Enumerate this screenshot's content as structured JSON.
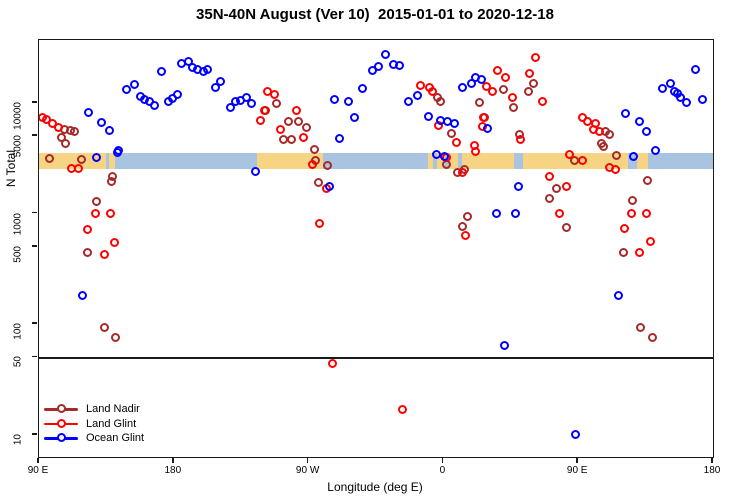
{
  "title": "35N-40N August (Ver 10)  2015-01-01 to 2020-12-18",
  "axes": {
    "ylabel": "N Total",
    "xlabel": "Longitude (deg E)",
    "xlim": [
      90,
      540
    ],
    "ylim": [
      6.3,
      37000
    ],
    "yticks": [
      10000,
      5000,
      1000,
      500,
      100,
      50,
      10
    ],
    "xticks": [
      {
        "lon": 90,
        "label": "90 E"
      },
      {
        "lon": 180,
        "label": "180"
      },
      {
        "lon": 270,
        "label": "90 W"
      },
      {
        "lon": 360,
        "label": "0"
      },
      {
        "lon": 450,
        "label": "90 E"
      },
      {
        "lon": 540,
        "label": "180"
      }
    ],
    "reference_line_value": 50
  },
  "legend": {
    "items": [
      {
        "label": "Land Nadir",
        "color": "#A52A2A"
      },
      {
        "label": "Land Glint",
        "color": "#FF0000"
      },
      {
        "label": "Ocean Glint",
        "color": "#0000FF"
      }
    ]
  },
  "colors": {
    "land_nadir": "#A52A2A",
    "land_glint": "#FF0000",
    "ocean_glint": "#0000FF",
    "map_land": "#F7D483",
    "map_ocean": "#A9C4E1",
    "axis": "#1a1a1a"
  },
  "map_strip": {
    "top_value": 3530,
    "bottom_value": 2530,
    "segments": [
      {
        "type": "land",
        "from": 90,
        "to": 134.7
      },
      {
        "type": "ocean",
        "from": 134.7,
        "to": 136.7
      },
      {
        "type": "land",
        "from": 136.7,
        "to": 140.7
      },
      {
        "type": "ocean",
        "from": 140.7,
        "to": 235.3
      },
      {
        "type": "land",
        "from": 235.3,
        "to": 279.3
      },
      {
        "type": "ocean",
        "from": 279.3,
        "to": 350
      },
      {
        "type": "land",
        "from": 350,
        "to": 353.3
      },
      {
        "type": "ocean",
        "from": 353.3,
        "to": 356
      },
      {
        "type": "land",
        "from": 356,
        "to": 361.3
      },
      {
        "type": "ocean",
        "from": 361.3,
        "to": 364
      },
      {
        "type": "land",
        "from": 364,
        "to": 370
      },
      {
        "type": "ocean",
        "from": 370,
        "to": 372.7
      },
      {
        "type": "land",
        "from": 372.7,
        "to": 407.3
      },
      {
        "type": "ocean",
        "from": 407.3,
        "to": 413.3
      },
      {
        "type": "land",
        "from": 413.3,
        "to": 483.3
      },
      {
        "type": "ocean",
        "from": 483.3,
        "to": 489.3
      },
      {
        "type": "land",
        "from": 489.3,
        "to": 496.7
      },
      {
        "type": "ocean",
        "from": 496.7,
        "to": 540
      }
    ]
  },
  "chart_data": {
    "type": "scatter",
    "x_units": "degrees east (wrapping 90E to 180)",
    "y_scale": "log10",
    "series": [
      {
        "name": "Land Nadir",
        "color": "#A52A2A",
        "points": [
          [
            107.3,
            5700
          ],
          [
            111.3,
            5590
          ],
          [
            114,
            5480
          ],
          [
            105.3,
            4830
          ],
          [
            108,
            4260
          ],
          [
            96.7,
            3120
          ],
          [
            118.7,
            3060
          ],
          [
            139.3,
            2160
          ],
          [
            138.7,
            1960
          ],
          [
            128.7,
            1280
          ],
          [
            122.7,
            440
          ],
          [
            133.7,
            93
          ],
          [
            141.3,
            76
          ],
          [
            248.7,
            9900
          ],
          [
            241.3,
            8500
          ],
          [
            256.7,
            6740
          ],
          [
            263.3,
            6740
          ],
          [
            268.7,
            5940
          ],
          [
            253.3,
            4620
          ],
          [
            258.7,
            4620
          ],
          [
            274,
            3770
          ],
          [
            274.7,
            2990
          ],
          [
            282.7,
            2700
          ],
          [
            276.7,
            1890
          ],
          [
            356,
            11100
          ],
          [
            358,
            10200
          ],
          [
            365.3,
            5240
          ],
          [
            362,
            2750
          ],
          [
            369.3,
            2330
          ],
          [
            374.3,
            2500
          ],
          [
            372.7,
            760
          ],
          [
            376,
            935
          ],
          [
            384,
            10000
          ],
          [
            387.3,
            7320
          ],
          [
            400,
            13100
          ],
          [
            406.7,
            8990
          ],
          [
            410.7,
            5140
          ],
          [
            416.7,
            12800
          ],
          [
            420,
            14850
          ],
          [
            430.7,
            1360
          ],
          [
            435.3,
            1670
          ],
          [
            442,
            740
          ],
          [
            447.3,
            3000
          ],
          [
            465.3,
            4290
          ],
          [
            468,
            5480
          ],
          [
            470.7,
            5140
          ],
          [
            466.7,
            4000
          ],
          [
            475.3,
            3330
          ],
          [
            496,
            1970
          ],
          [
            486,
            1300
          ],
          [
            480,
            440
          ],
          [
            491.3,
            93
          ],
          [
            499.3,
            76
          ]
        ]
      },
      {
        "name": "Land Glint",
        "color": "#FF0000",
        "points": [
          [
            92,
            7320
          ],
          [
            95.3,
            7030
          ],
          [
            99.3,
            6470
          ],
          [
            102.7,
            5940
          ],
          [
            112,
            2550
          ],
          [
            116.7,
            2550
          ],
          [
            128,
            1010
          ],
          [
            138,
            990
          ],
          [
            122.7,
            715
          ],
          [
            140.7,
            545
          ],
          [
            134,
            430
          ],
          [
            242.7,
            12600
          ],
          [
            247.3,
            11900
          ],
          [
            240.7,
            8600
          ],
          [
            262,
            8600
          ],
          [
            238,
            6900
          ],
          [
            251.3,
            5770
          ],
          [
            266.7,
            4830
          ],
          [
            272.7,
            2760
          ],
          [
            282,
            1670
          ],
          [
            277.3,
            820
          ],
          [
            285.7,
            44
          ],
          [
            332.7,
            17
          ],
          [
            344.7,
            14250
          ],
          [
            350.7,
            13700
          ],
          [
            352.7,
            12600
          ],
          [
            356.7,
            6200
          ],
          [
            362,
            3180
          ],
          [
            368.7,
            4350
          ],
          [
            380.7,
            4100
          ],
          [
            381.3,
            3620
          ],
          [
            372.7,
            2330
          ],
          [
            374.7,
            630
          ],
          [
            386.7,
            7450
          ],
          [
            386,
            6070
          ],
          [
            388.7,
            13950
          ],
          [
            392.7,
            12800
          ],
          [
            396,
            19500
          ],
          [
            401.3,
            16850
          ],
          [
            406,
            11100
          ],
          [
            417.3,
            18300
          ],
          [
            421.3,
            25500
          ],
          [
            426,
            10200
          ],
          [
            411.3,
            4620
          ],
          [
            430.7,
            2140
          ],
          [
            444,
            3380
          ],
          [
            452.7,
            3030
          ],
          [
            442,
            1740
          ],
          [
            437.3,
            1010
          ],
          [
            452.7,
            7320
          ],
          [
            456,
            6740
          ],
          [
            461.3,
            6470
          ],
          [
            460,
            5700
          ],
          [
            464,
            5480
          ],
          [
            470.7,
            2580
          ],
          [
            474.7,
            2480
          ],
          [
            485.3,
            1010
          ],
          [
            495.3,
            1010
          ],
          [
            480.7,
            730
          ],
          [
            498,
            555
          ],
          [
            490.7,
            440
          ]
        ]
      },
      {
        "name": "Ocean Glint",
        "color": "#0000FF",
        "points": [
          [
            123.3,
            8120
          ],
          [
            132,
            6600
          ],
          [
            137.3,
            5590
          ],
          [
            143.3,
            3690
          ],
          [
            142.7,
            3540
          ],
          [
            128.7,
            3180
          ],
          [
            119.3,
            180
          ],
          [
            148.7,
            13100
          ],
          [
            154,
            14550
          ],
          [
            158,
            11400
          ],
          [
            160.7,
            10750
          ],
          [
            164,
            10200
          ],
          [
            167.3,
            9400
          ],
          [
            172,
            19100
          ],
          [
            176.7,
            10350
          ],
          [
            179.3,
            10900
          ],
          [
            182.7,
            11900
          ],
          [
            185.3,
            22500
          ],
          [
            190,
            23450
          ],
          [
            192.7,
            20700
          ],
          [
            196,
            19900
          ],
          [
            200,
            19100
          ],
          [
            202.7,
            19900
          ],
          [
            208,
            13700
          ],
          [
            211.3,
            15500
          ],
          [
            218,
            9000
          ],
          [
            221.3,
            10200
          ],
          [
            224.7,
            10600
          ],
          [
            228.7,
            11100
          ],
          [
            232,
            9800
          ],
          [
            234.7,
            2390
          ],
          [
            284,
            1740
          ],
          [
            287.3,
            10750
          ],
          [
            296.7,
            10350
          ],
          [
            306,
            13400
          ],
          [
            312.7,
            19450
          ],
          [
            316.7,
            21200
          ],
          [
            321.3,
            27200
          ],
          [
            326.7,
            22100
          ],
          [
            330.7,
            21800
          ],
          [
            300.7,
            7320
          ],
          [
            290.7,
            4740
          ],
          [
            336.7,
            10200
          ],
          [
            342.7,
            11650
          ],
          [
            350,
            7600
          ],
          [
            358,
            6880
          ],
          [
            362.7,
            6740
          ],
          [
            367.3,
            6470
          ],
          [
            355.3,
            3430
          ],
          [
            360.7,
            3280
          ],
          [
            372.7,
            13700
          ],
          [
            378.7,
            14850
          ],
          [
            381.3,
            16850
          ],
          [
            385.3,
            16150
          ],
          [
            389.3,
            5820
          ],
          [
            400.7,
            64
          ],
          [
            410,
            1740
          ],
          [
            395.3,
            1010
          ],
          [
            408,
            1010
          ],
          [
            448,
            10
          ],
          [
            476.7,
            180
          ],
          [
            481.3,
            7950
          ],
          [
            490.7,
            6740
          ],
          [
            495.3,
            5480
          ],
          [
            501.3,
            3690
          ],
          [
            486.7,
            3250
          ],
          [
            506,
            13400
          ],
          [
            511.3,
            14850
          ],
          [
            514,
            12600
          ],
          [
            516,
            12100
          ],
          [
            518,
            11100
          ],
          [
            522,
            10000
          ],
          [
            528,
            19900
          ],
          [
            533.3,
            10700
          ]
        ]
      }
    ]
  }
}
